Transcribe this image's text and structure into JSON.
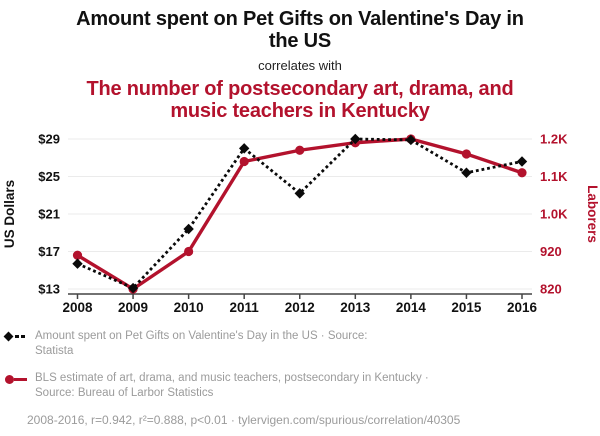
{
  "header": {
    "title": "Amount spent on Pet Gifts on Valentine's Day in the US",
    "connector": "correlates with",
    "subtitle": "The number of postsecondary art, drama, and music teachers in Kentucky"
  },
  "chart_data": {
    "type": "line",
    "x": [
      2008,
      2009,
      2010,
      2011,
      2012,
      2013,
      2014,
      2015,
      2016
    ],
    "series": [
      {
        "name": "Amount spent on Pet Gifts on Valentine's Day in the US",
        "axis": "left",
        "color": "#0a0a0a",
        "style": "dashed",
        "marker": "diamond",
        "values": [
          15.7,
          13.1,
          19.4,
          28.0,
          23.2,
          29.0,
          28.9,
          25.4,
          26.6
        ]
      },
      {
        "name": "BLS estimate of art, drama, and music teachers, postsecondary in Kentucky",
        "axis": "right",
        "color": "#b3122d",
        "style": "solid",
        "marker": "circle",
        "values": [
          910,
          820,
          920,
          1160,
          1190,
          1210,
          1220,
          1180,
          1130
        ]
      }
    ],
    "left_axis": {
      "label": "US Dollars",
      "ticks": [
        13,
        17,
        21,
        25,
        29
      ],
      "tick_labels": [
        "$13",
        "$17",
        "$21",
        "$25",
        "$29"
      ],
      "range": [
        13,
        29
      ]
    },
    "right_axis": {
      "label": "Laborers",
      "ticks": [
        820,
        920,
        1020,
        1120,
        1220
      ],
      "tick_labels": [
        "820",
        "920",
        "1.0K",
        "1.1K",
        "1.2K"
      ],
      "range": [
        820,
        1220
      ]
    },
    "grid": true,
    "legend_position": "bottom"
  },
  "legend": {
    "items": [
      {
        "marker": "black-diamond-dashed",
        "line1": "Amount spent on Pet Gifts on Valentine's Day in the US · Source:",
        "line2": "Statista"
      },
      {
        "marker": "red-circle-solid",
        "line1": "BLS estimate of art, drama, and music teachers, postsecondary in Kentucky ·",
        "line2": "Source: Bureau of Larbor Statistics"
      }
    ],
    "footnote": "2008-2016, r=0.942, r²=0.888, p<0.01 · tylervigen.com/spurious/correlation/40305"
  },
  "colors": {
    "accent_red": "#b3122d",
    "text_gray": "#9b9b9b",
    "grid": "#ebebeb",
    "axis": "#444444"
  }
}
